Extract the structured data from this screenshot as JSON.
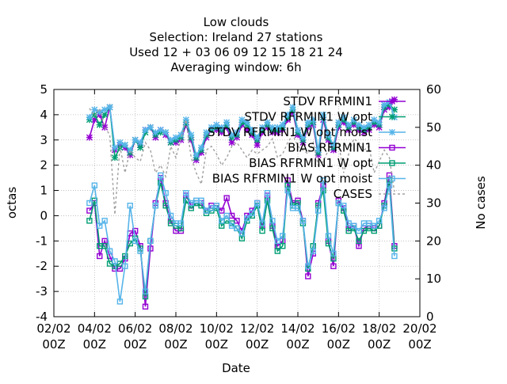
{
  "chart_data": {
    "type": "line",
    "title_lines": [
      "Low clouds",
      "Selection: Ireland      27 stations",
      "Used  12 + 03 06 09 12 15 18 21 24",
      "Averaging window:  6h"
    ],
    "xlabel": "Date",
    "ylabel": "octas",
    "y2label": "No cases",
    "xlim": [
      "2002-02-02 00Z",
      "2002-02-20 00Z"
    ],
    "x_ticks": [
      {
        "date": "2002-02-02 00Z",
        "line1": "02/02",
        "line2": "00Z"
      },
      {
        "date": "2002-02-04 00Z",
        "line1": "04/02",
        "line2": "00Z"
      },
      {
        "date": "2002-02-06 00Z",
        "line1": "06/02",
        "line2": "00Z"
      },
      {
        "date": "2002-02-08 00Z",
        "line1": "08/02",
        "line2": "00Z"
      },
      {
        "date": "2002-02-10 00Z",
        "line1": "10/02",
        "line2": "00Z"
      },
      {
        "date": "2002-02-12 00Z",
        "line1": "12/02",
        "line2": "00Z"
      },
      {
        "date": "2002-02-14 00Z",
        "line1": "14/02",
        "line2": "00Z"
      },
      {
        "date": "2002-02-16 00Z",
        "line1": "16/02",
        "line2": "00Z"
      },
      {
        "date": "2002-02-18 00Z",
        "line1": "18/02",
        "line2": "00Z"
      },
      {
        "date": "2002-02-20 00Z",
        "line1": "20/02",
        "line2": "00Z"
      }
    ],
    "ylim": [
      -4,
      5
    ],
    "y_ticks": [
      "-4",
      "-3",
      "-2",
      "-1",
      "0",
      "1",
      "2",
      "3",
      "4",
      "5"
    ],
    "y2lim": [
      0,
      60
    ],
    "y2_ticks": [
      "0",
      "10",
      "20",
      "30",
      "40",
      "50",
      "60"
    ],
    "grid": true,
    "legend_position": "top-right",
    "x": [
      "2002-02-03 18Z",
      "2002-02-04 00Z",
      "2002-02-04 06Z",
      "2002-02-04 12Z",
      "2002-02-04 18Z",
      "2002-02-05 00Z",
      "2002-02-05 06Z",
      "2002-02-05 12Z",
      "2002-02-05 18Z",
      "2002-02-06 00Z",
      "2002-02-06 06Z",
      "2002-02-06 12Z",
      "2002-02-06 18Z",
      "2002-02-07 00Z",
      "2002-02-07 06Z",
      "2002-02-07 12Z",
      "2002-02-07 18Z",
      "2002-02-08 00Z",
      "2002-02-08 06Z",
      "2002-02-08 12Z",
      "2002-02-08 18Z",
      "2002-02-09 00Z",
      "2002-02-09 06Z",
      "2002-02-09 12Z",
      "2002-02-09 18Z",
      "2002-02-10 00Z",
      "2002-02-10 06Z",
      "2002-02-10 12Z",
      "2002-02-10 18Z",
      "2002-02-11 00Z",
      "2002-02-11 06Z",
      "2002-02-11 12Z",
      "2002-02-11 18Z",
      "2002-02-12 00Z",
      "2002-02-12 06Z",
      "2002-02-12 12Z",
      "2002-02-12 18Z",
      "2002-02-13 00Z",
      "2002-02-13 06Z",
      "2002-02-13 12Z",
      "2002-02-13 18Z",
      "2002-02-14 00Z",
      "2002-02-14 06Z",
      "2002-02-14 12Z",
      "2002-02-14 18Z",
      "2002-02-15 00Z",
      "2002-02-15 06Z",
      "2002-02-15 12Z",
      "2002-02-15 18Z",
      "2002-02-16 00Z",
      "2002-02-16 06Z",
      "2002-02-16 12Z",
      "2002-02-16 18Z",
      "2002-02-17 00Z",
      "2002-02-17 06Z",
      "2002-02-17 12Z",
      "2002-02-17 18Z",
      "2002-02-18 00Z",
      "2002-02-18 06Z",
      "2002-02-18 12Z",
      "2002-02-18 18Z"
    ],
    "series": [
      {
        "name": "STDV RFRMIN1",
        "axis": "y1",
        "color": "#9400d3",
        "marker": "star",
        "dash": false,
        "values": [
          3.1,
          3.8,
          4.0,
          3.5,
          4.3,
          2.6,
          2.8,
          2.7,
          2.4,
          3.0,
          2.8,
          3.4,
          3.5,
          3.1,
          3.4,
          3.2,
          2.9,
          2.9,
          3.0,
          3.6,
          3.0,
          2.2,
          2.5,
          3.1,
          3.4,
          3.4,
          3.3,
          3.5,
          2.9,
          3.1,
          3.6,
          3.4,
          3.2,
          2.8,
          3.3,
          3.5,
          3.3,
          3.3,
          3.4,
          3.8,
          4.1,
          3.2,
          2.9,
          3.5,
          3.6,
          2.4,
          3.8,
          3.0,
          2.6,
          3.5,
          3.7,
          3.4,
          3.6,
          3.4,
          3.3,
          3.4,
          3.6,
          3.5,
          4.2,
          4.3,
          4.6
        ]
      },
      {
        "name": "STDV RFRMIN1 W opt",
        "axis": "y1",
        "color": "#009e73",
        "marker": "star",
        "dash": false,
        "values": [
          3.8,
          4.0,
          3.6,
          4.0,
          4.3,
          2.3,
          2.7,
          2.8,
          2.5,
          3.0,
          2.7,
          3.3,
          3.5,
          3.2,
          3.3,
          3.3,
          2.9,
          3.0,
          3.1,
          3.7,
          3.1,
          2.3,
          2.6,
          3.2,
          3.4,
          3.5,
          3.4,
          3.6,
          3.1,
          3.2,
          3.7,
          3.6,
          3.3,
          3.0,
          3.4,
          3.6,
          3.4,
          3.4,
          3.5,
          3.9,
          4.2,
          3.3,
          3.0,
          3.6,
          3.7,
          2.5,
          3.9,
          3.1,
          2.7,
          3.6,
          3.8,
          3.5,
          3.7,
          3.5,
          3.4,
          3.5,
          3.7,
          3.6,
          4.3,
          4.4,
          4.2
        ]
      },
      {
        "name": "STDV RFRMIN1 W opt moist",
        "axis": "y1",
        "color": "#56b4e9",
        "marker": "star",
        "dash": false,
        "values": [
          3.9,
          4.2,
          4.1,
          4.2,
          4.3,
          2.7,
          2.9,
          2.8,
          2.6,
          3.0,
          2.9,
          3.4,
          3.5,
          3.3,
          3.4,
          3.3,
          3.0,
          3.1,
          3.2,
          3.8,
          3.2,
          2.4,
          2.7,
          3.3,
          3.5,
          3.6,
          3.5,
          3.7,
          3.2,
          3.3,
          3.8,
          3.7,
          3.4,
          3.1,
          3.5,
          3.7,
          3.5,
          3.5,
          3.6,
          4.0,
          4.3,
          3.4,
          3.1,
          3.7,
          3.8,
          2.6,
          4.0,
          3.2,
          2.8,
          3.7,
          3.9,
          3.6,
          3.8,
          3.6,
          3.5,
          3.6,
          3.8,
          3.7,
          4.4,
          4.5,
          3.9
        ]
      },
      {
        "name": "BIAS RFRMIN1",
        "axis": "y1",
        "color": "#9400d3",
        "marker": "square",
        "dash": false,
        "values": [
          0.2,
          0.5,
          -1.6,
          -1.0,
          -1.6,
          -2.1,
          -2.1,
          -1.7,
          -0.7,
          -0.6,
          -1.2,
          -3.6,
          -1.3,
          0.5,
          1.5,
          0.5,
          -0.2,
          -0.6,
          -0.6,
          0.8,
          0.4,
          0.5,
          0.5,
          0.2,
          0.4,
          0.4,
          0.2,
          0.7,
          0.0,
          -0.2,
          -0.6,
          0.0,
          0.2,
          0.5,
          -0.4,
          0.8,
          -0.4,
          -1.2,
          -1.0,
          1.4,
          0.5,
          0.6,
          -0.2,
          -2.4,
          -1.5,
          0.5,
          1.2,
          -1.0,
          -2.0,
          0.6,
          0.3,
          -0.5,
          -0.4,
          -1.2,
          -0.5,
          -0.4,
          -0.5,
          -0.4,
          0.5,
          1.6,
          -1.2
        ]
      },
      {
        "name": "BIAS RFRMIN1 W opt",
        "axis": "y1",
        "color": "#009e73",
        "marker": "square",
        "dash": false,
        "values": [
          -0.2,
          0.6,
          -1.2,
          -1.2,
          -1.9,
          -2.0,
          -1.9,
          -1.6,
          -1.1,
          -0.9,
          -1.3,
          -3.2,
          -1.0,
          0.4,
          1.3,
          0.4,
          -0.3,
          -0.4,
          -0.5,
          0.6,
          0.3,
          0.5,
          0.4,
          0.1,
          0.2,
          0.3,
          -0.4,
          -0.2,
          -0.3,
          -0.5,
          -0.9,
          -0.2,
          0.0,
          0.4,
          -0.6,
          0.6,
          -0.5,
          -1.4,
          -1.2,
          1.2,
          0.4,
          0.5,
          -0.3,
          -2.1,
          -1.2,
          0.4,
          1.0,
          -1.1,
          -1.7,
          0.5,
          0.2,
          -0.6,
          -0.5,
          -1.0,
          -0.6,
          -0.5,
          -0.6,
          -0.4,
          0.4,
          1.4,
          -1.3
        ]
      },
      {
        "name": "BIAS RFRMIN1 W opt moist",
        "axis": "y1",
        "color": "#56b4e9",
        "marker": "square",
        "dash": false,
        "values": [
          0.5,
          1.2,
          -0.4,
          -0.2,
          -1.4,
          -1.8,
          -3.4,
          -2.0,
          0.4,
          -1.0,
          -1.4,
          -3.0,
          -1.0,
          0.4,
          1.6,
          0.9,
          0.0,
          -0.3,
          -0.3,
          0.9,
          0.5,
          0.6,
          0.6,
          0.2,
          0.3,
          0.4,
          -0.2,
          0.0,
          -0.4,
          -0.5,
          -0.7,
          -0.1,
          0.1,
          0.5,
          -0.3,
          0.9,
          -0.2,
          -1.0,
          -0.8,
          1.0,
          0.3,
          0.3,
          -0.2,
          -2.0,
          -1.4,
          0.2,
          1.4,
          -0.8,
          -1.5,
          0.5,
          0.4,
          -0.3,
          -0.4,
          -0.6,
          -0.3,
          -0.3,
          -0.4,
          -0.2,
          0.3,
          1.2,
          -1.6
        ]
      },
      {
        "name": "CASES",
        "axis": "y2",
        "color": "#a0a0a0",
        "marker": "none",
        "dash": true,
        "values": [
          55,
          53,
          55,
          50,
          48,
          27,
          45,
          38,
          44,
          42,
          41,
          46,
          44,
          38,
          40,
          37,
          45,
          42,
          47,
          52,
          42,
          38,
          35,
          44,
          45,
          43,
          40,
          42,
          45,
          46,
          44,
          42,
          44,
          43,
          44,
          45,
          47,
          42,
          43,
          46,
          48,
          45,
          44,
          43,
          46,
          40,
          41,
          44,
          45,
          46,
          38,
          43,
          47,
          46,
          44,
          45,
          38,
          41,
          44,
          42,
          33
        ]
      }
    ]
  }
}
